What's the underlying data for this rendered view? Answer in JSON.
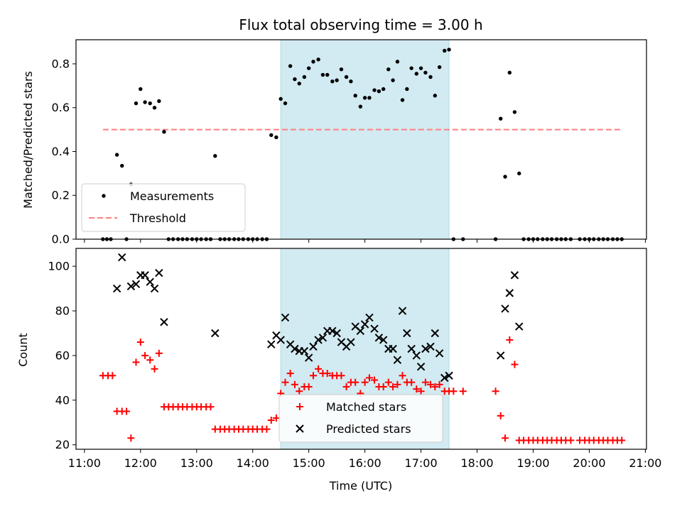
{
  "chart_data": {
    "type": "scatter",
    "title": "Flux total observing time = 3.00 h",
    "xlabel": "Time (UTC)",
    "xlim_hours": [
      10.85,
      21.02
    ],
    "x_ticks": [
      {
        "h": 11,
        "label": "11:00"
      },
      {
        "h": 12,
        "label": "12:00"
      },
      {
        "h": 13,
        "label": "13:00"
      },
      {
        "h": 14,
        "label": "14:00"
      },
      {
        "h": 15,
        "label": "15:00"
      },
      {
        "h": 16,
        "label": "16:00"
      },
      {
        "h": 17,
        "label": "17:00"
      },
      {
        "h": 18,
        "label": "18:00"
      },
      {
        "h": 19,
        "label": "19:00"
      },
      {
        "h": 20,
        "label": "20:00"
      },
      {
        "h": 21,
        "label": "21:00"
      }
    ],
    "observing_window_hours": [
      14.5,
      17.5
    ],
    "colors": {
      "window": "#add8e6",
      "matched": "#ff0000",
      "predicted": "#000000",
      "measurement": "#000000",
      "threshold": "#ff7f7f"
    },
    "top": {
      "ylabel": "Matched/Predicted stars",
      "ylim": [
        0,
        0.91
      ],
      "y_ticks": [
        {
          "v": 0.0,
          "label": "0.0"
        },
        {
          "v": 0.2,
          "label": "0.2"
        },
        {
          "v": 0.4,
          "label": "0.4"
        },
        {
          "v": 0.6,
          "label": "0.6"
        },
        {
          "v": 0.8,
          "label": "0.8"
        }
      ],
      "threshold": {
        "name": "Threshold",
        "value": 0.5,
        "x_range_hours": [
          11.33,
          20.6
        ]
      },
      "measurements": {
        "name": "Measurements",
        "points": [
          [
            11.33,
            0
          ],
          [
            11.4,
            0
          ],
          [
            11.47,
            0
          ],
          [
            11.58,
            0.385
          ],
          [
            11.67,
            0.335
          ],
          [
            11.75,
            0
          ],
          [
            11.83,
            0.25
          ],
          [
            11.92,
            0.62
          ],
          [
            12.0,
            0.685
          ],
          [
            12.08,
            0.625
          ],
          [
            12.17,
            0.62
          ],
          [
            12.25,
            0.6
          ],
          [
            12.33,
            0.63
          ],
          [
            12.42,
            0.49
          ],
          [
            12.5,
            0
          ],
          [
            12.58,
            0
          ],
          [
            12.67,
            0
          ],
          [
            12.75,
            0
          ],
          [
            12.83,
            0
          ],
          [
            12.92,
            0
          ],
          [
            13.0,
            0
          ],
          [
            13.08,
            0
          ],
          [
            13.17,
            0
          ],
          [
            13.25,
            0
          ],
          [
            13.33,
            0.38
          ],
          [
            13.42,
            0
          ],
          [
            13.5,
            0
          ],
          [
            13.58,
            0
          ],
          [
            13.67,
            0
          ],
          [
            13.75,
            0
          ],
          [
            13.83,
            0
          ],
          [
            13.92,
            0
          ],
          [
            14.0,
            0
          ],
          [
            14.08,
            0
          ],
          [
            14.17,
            0
          ],
          [
            14.25,
            0
          ],
          [
            14.33,
            0.475
          ],
          [
            14.42,
            0.465
          ],
          [
            14.5,
            0.64
          ],
          [
            14.58,
            0.62
          ],
          [
            14.67,
            0.79
          ],
          [
            14.75,
            0.73
          ],
          [
            14.83,
            0.71
          ],
          [
            14.92,
            0.74
          ],
          [
            15.0,
            0.78
          ],
          [
            15.08,
            0.81
          ],
          [
            15.17,
            0.82
          ],
          [
            15.25,
            0.75
          ],
          [
            15.33,
            0.75
          ],
          [
            15.42,
            0.72
          ],
          [
            15.5,
            0.725
          ],
          [
            15.58,
            0.775
          ],
          [
            15.67,
            0.74
          ],
          [
            15.75,
            0.72
          ],
          [
            15.83,
            0.655
          ],
          [
            15.92,
            0.605
          ],
          [
            16.0,
            0.645
          ],
          [
            16.08,
            0.645
          ],
          [
            16.17,
            0.68
          ],
          [
            16.25,
            0.675
          ],
          [
            16.33,
            0.685
          ],
          [
            16.42,
            0.775
          ],
          [
            16.5,
            0.725
          ],
          [
            16.58,
            0.81
          ],
          [
            16.67,
            0.635
          ],
          [
            16.75,
            0.685
          ],
          [
            16.83,
            0.78
          ],
          [
            16.92,
            0.755
          ],
          [
            17.0,
            0.78
          ],
          [
            17.08,
            0.76
          ],
          [
            17.17,
            0.74
          ],
          [
            17.25,
            0.655
          ],
          [
            17.33,
            0.785
          ],
          [
            17.42,
            0.86
          ],
          [
            17.5,
            0.865
          ],
          [
            17.58,
            0
          ],
          [
            17.75,
            0
          ],
          [
            18.33,
            0
          ],
          [
            18.42,
            0.55
          ],
          [
            18.5,
            0.285
          ],
          [
            18.58,
            0.76
          ],
          [
            18.67,
            0.58
          ],
          [
            18.75,
            0.3
          ],
          [
            18.83,
            0
          ],
          [
            18.92,
            0
          ],
          [
            19.0,
            0
          ],
          [
            19.08,
            0
          ],
          [
            19.17,
            0
          ],
          [
            19.25,
            0
          ],
          [
            19.33,
            0
          ],
          [
            19.42,
            0
          ],
          [
            19.5,
            0
          ],
          [
            19.58,
            0
          ],
          [
            19.67,
            0
          ],
          [
            19.83,
            0
          ],
          [
            19.92,
            0
          ],
          [
            20.0,
            0
          ],
          [
            20.08,
            0
          ],
          [
            20.17,
            0
          ],
          [
            20.25,
            0
          ],
          [
            20.33,
            0
          ],
          [
            20.42,
            0
          ],
          [
            20.5,
            0
          ],
          [
            20.58,
            0
          ]
        ]
      }
    },
    "bottom": {
      "ylabel": "Count",
      "ylim": [
        18,
        108
      ],
      "y_ticks": [
        {
          "v": 20,
          "label": "20"
        },
        {
          "v": 40,
          "label": "40"
        },
        {
          "v": 60,
          "label": "60"
        },
        {
          "v": 80,
          "label": "80"
        },
        {
          "v": 100,
          "label": "100"
        }
      ],
      "matched": {
        "name": "Matched stars",
        "points": [
          [
            11.33,
            51
          ],
          [
            11.42,
            51
          ],
          [
            11.5,
            51
          ],
          [
            11.58,
            35
          ],
          [
            11.67,
            35
          ],
          [
            11.75,
            35
          ],
          [
            11.83,
            23
          ],
          [
            11.92,
            57
          ],
          [
            12.0,
            66
          ],
          [
            12.08,
            60
          ],
          [
            12.17,
            58
          ],
          [
            12.25,
            54
          ],
          [
            12.33,
            61
          ],
          [
            12.42,
            37
          ],
          [
            12.5,
            37
          ],
          [
            12.58,
            37
          ],
          [
            12.67,
            37
          ],
          [
            12.75,
            37
          ],
          [
            12.83,
            37
          ],
          [
            12.92,
            37
          ],
          [
            13.0,
            37
          ],
          [
            13.08,
            37
          ],
          [
            13.17,
            37
          ],
          [
            13.25,
            37
          ],
          [
            13.33,
            27
          ],
          [
            13.42,
            27
          ],
          [
            13.5,
            27
          ],
          [
            13.58,
            27
          ],
          [
            13.67,
            27
          ],
          [
            13.75,
            27
          ],
          [
            13.83,
            27
          ],
          [
            13.92,
            27
          ],
          [
            14.0,
            27
          ],
          [
            14.08,
            27
          ],
          [
            14.17,
            27
          ],
          [
            14.25,
            27
          ],
          [
            14.33,
            31
          ],
          [
            14.42,
            32
          ],
          [
            14.5,
            43
          ],
          [
            14.58,
            48
          ],
          [
            14.67,
            52
          ],
          [
            14.75,
            47
          ],
          [
            14.83,
            44
          ],
          [
            14.92,
            46
          ],
          [
            15.0,
            46
          ],
          [
            15.08,
            51
          ],
          [
            15.17,
            54
          ],
          [
            15.25,
            52
          ],
          [
            15.33,
            52
          ],
          [
            15.42,
            51
          ],
          [
            15.5,
            51
          ],
          [
            15.58,
            51
          ],
          [
            15.67,
            46
          ],
          [
            15.75,
            48
          ],
          [
            15.83,
            48
          ],
          [
            15.92,
            43
          ],
          [
            16.0,
            48
          ],
          [
            16.08,
            50
          ],
          [
            16.17,
            49
          ],
          [
            16.25,
            46
          ],
          [
            16.33,
            46
          ],
          [
            16.42,
            48
          ],
          [
            16.5,
            46
          ],
          [
            16.58,
            47
          ],
          [
            16.67,
            51
          ],
          [
            16.75,
            48
          ],
          [
            16.83,
            48
          ],
          [
            16.92,
            45
          ],
          [
            17.0,
            44
          ],
          [
            17.08,
            48
          ],
          [
            17.17,
            47
          ],
          [
            17.25,
            46
          ],
          [
            17.33,
            47
          ],
          [
            17.42,
            44
          ],
          [
            17.5,
            44
          ],
          [
            17.58,
            44
          ],
          [
            17.75,
            44
          ],
          [
            18.33,
            44
          ],
          [
            18.42,
            33
          ],
          [
            18.5,
            23
          ],
          [
            18.58,
            67
          ],
          [
            18.67,
            56
          ],
          [
            18.75,
            22
          ],
          [
            18.83,
            22
          ],
          [
            18.92,
            22
          ],
          [
            19.0,
            22
          ],
          [
            19.08,
            22
          ],
          [
            19.17,
            22
          ],
          [
            19.25,
            22
          ],
          [
            19.33,
            22
          ],
          [
            19.42,
            22
          ],
          [
            19.5,
            22
          ],
          [
            19.58,
            22
          ],
          [
            19.67,
            22
          ],
          [
            19.83,
            22
          ],
          [
            19.92,
            22
          ],
          [
            20.0,
            22
          ],
          [
            20.08,
            22
          ],
          [
            20.17,
            22
          ],
          [
            20.25,
            22
          ],
          [
            20.33,
            22
          ],
          [
            20.42,
            22
          ],
          [
            20.5,
            22
          ],
          [
            20.58,
            22
          ]
        ]
      },
      "predicted": {
        "name": "Predicted stars",
        "points": [
          [
            11.58,
            90
          ],
          [
            11.67,
            104
          ],
          [
            11.83,
            91
          ],
          [
            11.92,
            92
          ],
          [
            12.0,
            96
          ],
          [
            12.08,
            96
          ],
          [
            12.17,
            93
          ],
          [
            12.25,
            90
          ],
          [
            12.33,
            97
          ],
          [
            12.42,
            75
          ],
          [
            13.33,
            70
          ],
          [
            14.33,
            65
          ],
          [
            14.42,
            69
          ],
          [
            14.5,
            67
          ],
          [
            14.58,
            77
          ],
          [
            14.67,
            65
          ],
          [
            14.75,
            63
          ],
          [
            14.83,
            62
          ],
          [
            14.92,
            62
          ],
          [
            15.0,
            59
          ],
          [
            15.08,
            64
          ],
          [
            15.17,
            67
          ],
          [
            15.25,
            68
          ],
          [
            15.33,
            71
          ],
          [
            15.42,
            71
          ],
          [
            15.5,
            70
          ],
          [
            15.58,
            66
          ],
          [
            15.67,
            64
          ],
          [
            15.75,
            66
          ],
          [
            15.83,
            73
          ],
          [
            15.92,
            71
          ],
          [
            16.0,
            74
          ],
          [
            16.08,
            77
          ],
          [
            16.17,
            72
          ],
          [
            16.25,
            68
          ],
          [
            16.33,
            67
          ],
          [
            16.42,
            63
          ],
          [
            16.5,
            63
          ],
          [
            16.58,
            58
          ],
          [
            16.67,
            80
          ],
          [
            16.75,
            70
          ],
          [
            16.83,
            63
          ],
          [
            16.92,
            60
          ],
          [
            17.0,
            55
          ],
          [
            17.08,
            63
          ],
          [
            17.17,
            64
          ],
          [
            17.25,
            70
          ],
          [
            17.33,
            61
          ],
          [
            17.42,
            50
          ],
          [
            17.5,
            51
          ],
          [
            18.42,
            60
          ],
          [
            18.5,
            81
          ],
          [
            18.58,
            88
          ],
          [
            18.67,
            96
          ],
          [
            18.75,
            73
          ]
        ]
      }
    }
  }
}
